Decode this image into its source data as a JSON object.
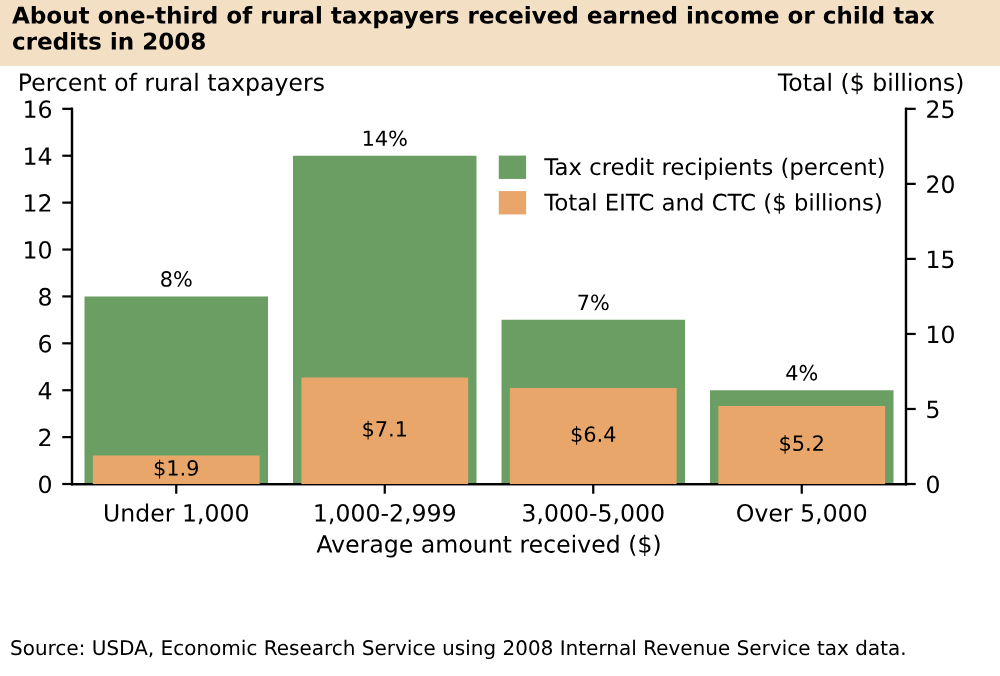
{
  "chart_data": {
    "type": "bar",
    "title": "About one-third of rural taxpayers received earned income or child tax credits in 2008",
    "xlabel": "Average amount received ($)",
    "ylabel": "Percent of rural taxpayers",
    "y2label": "Total ($ billions)",
    "categories": [
      "Under 1,000",
      "1,000-2,999",
      "3,000-5,000",
      "Over 5,000"
    ],
    "series": [
      {
        "name": "Tax credit recipients (percent)",
        "color": "#6b9e62",
        "values": [
          8,
          14,
          7,
          4
        ],
        "value_labels": [
          "8%",
          "14%",
          "7%",
          "4%"
        ]
      },
      {
        "name": "Total EITC and CTC ($ billions)",
        "color": "#e8a66b",
        "values": [
          1.9,
          7.1,
          6.4,
          5.2
        ],
        "value_labels": [
          "$1.9",
          "$7.1",
          "$6.4",
          "$5.2"
        ],
        "axis": "y2"
      }
    ],
    "ylim": [
      0,
      16
    ],
    "yticks": [
      0,
      2,
      4,
      6,
      8,
      10,
      12,
      14,
      16
    ],
    "y2lim": [
      0,
      25
    ],
    "y2ticks": [
      0,
      5,
      10,
      15,
      20,
      25
    ],
    "grid": false,
    "legend": "top right",
    "annotations": [
      "Source: USDA, Economic Research Service using 2008 Internal Revenue Service tax data."
    ]
  }
}
